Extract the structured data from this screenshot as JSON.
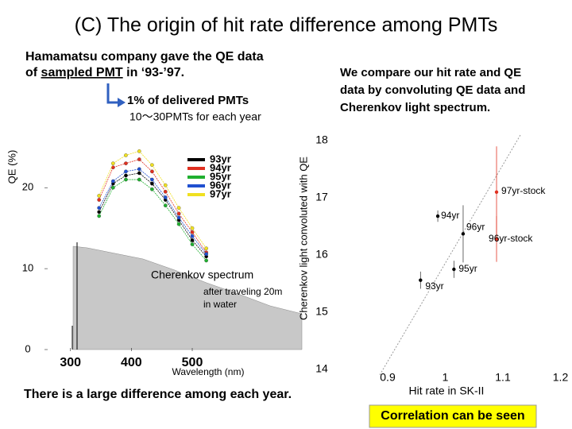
{
  "title": "(C) The origin of hit rate difference among PMTs",
  "left_note": {
    "line1": "Hamamatsu company gave the QE data",
    "line2_start": "of ",
    "line2_underlined": "sampled PMT",
    "line2_end": " in ‘93-’97."
  },
  "sample_note": "1% of delivered PMTs",
  "count_note": "10～30PMTs for each year",
  "right_note": [
    "We compare our hit rate and QE",
    "data by convoluting QE data and",
    "Cherenkov light spectrum."
  ],
  "conclusion": "There is a large difference among each year.",
  "highlight": "Correlation can be seen",
  "chart_data": [
    {
      "type": "line",
      "ylabel": "QE (%)",
      "xlabel": "Wavelength (nm)",
      "annotation": "Cherenkov spectrum",
      "annotation_sub": [
        "after traveling 20m",
        "in water"
      ],
      "x": [
        347,
        370,
        391,
        413,
        434,
        456,
        478,
        500,
        523
      ],
      "series": [
        {
          "name": "93yr",
          "color": "#000000",
          "values": [
            17.0,
            20.5,
            21.5,
            21.8,
            20.5,
            18.5,
            16.0,
            13.5,
            11.5
          ]
        },
        {
          "name": "94yr",
          "color": "#e03020",
          "values": [
            18.5,
            22.5,
            23.0,
            23.5,
            22.0,
            19.5,
            16.8,
            14.5,
            12.0
          ]
        },
        {
          "name": "95yr",
          "color": "#20b030",
          "values": [
            16.5,
            20.0,
            21.0,
            21.0,
            19.8,
            17.8,
            15.5,
            13.0,
            11.0
          ]
        },
        {
          "name": "96yr",
          "color": "#2050d0",
          "values": [
            17.5,
            20.8,
            22.0,
            22.3,
            21.0,
            18.8,
            16.3,
            14.0,
            11.8
          ]
        },
        {
          "name": "97yr",
          "color": "#f0e020",
          "values": [
            19.0,
            23.0,
            24.0,
            24.5,
            22.8,
            20.3,
            17.5,
            15.0,
            12.5
          ]
        }
      ],
      "xlim": [
        260,
        680
      ],
      "ylim": [
        0,
        26.5
      ],
      "xticks": [
        300,
        400,
        500
      ],
      "yticks": [
        0,
        10,
        20
      ]
    },
    {
      "type": "scatter",
      "ylabel": "Cherenkov light convoluted with QE",
      "xlabel": "Hit rate in SK-II",
      "labels": [
        "97yr-stock",
        "94yr",
        "96yr",
        "96yr-stock",
        "95yr",
        "93yr"
      ],
      "x": [
        1.089,
        0.987,
        1.031,
        1.089,
        1.015,
        0.957
      ],
      "values": [
        17.1,
        16.68,
        16.37,
        16.28,
        15.75,
        15.56
      ],
      "errors": [
        0.8,
        0.1,
        0.5,
        0.4,
        0.15,
        0.15
      ],
      "colors": [
        "#e03020",
        "#000000",
        "#000000",
        "#e03020",
        "#000000",
        "#000000"
      ],
      "xlim": [
        0.82,
        1.22
      ],
      "ylim": [
        14,
        18
      ],
      "xticks": [
        0.9,
        1.0,
        1.1,
        1.2
      ],
      "yticks": [
        14,
        15,
        16,
        17,
        18
      ]
    }
  ]
}
